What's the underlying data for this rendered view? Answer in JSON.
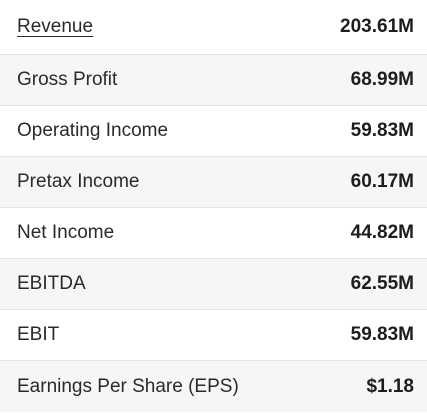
{
  "financials": {
    "rows": [
      {
        "label": "Revenue",
        "value": "203.61M"
      },
      {
        "label": "Gross Profit",
        "value": "68.99M"
      },
      {
        "label": "Operating Income",
        "value": "59.83M"
      },
      {
        "label": "Pretax Income",
        "value": "60.17M"
      },
      {
        "label": "Net Income",
        "value": "44.82M"
      },
      {
        "label": "EBITDA",
        "value": "62.55M"
      },
      {
        "label": "EBIT",
        "value": "59.83M"
      },
      {
        "label": "Earnings Per Share (EPS)",
        "value": "$1.18"
      }
    ]
  }
}
